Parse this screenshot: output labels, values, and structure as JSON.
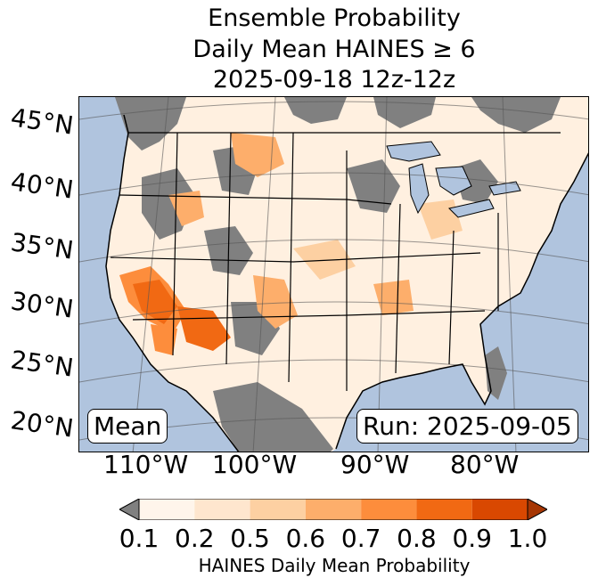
{
  "title": {
    "line1": "Ensemble Probability",
    "line2": "Daily Mean HAINES ≥ 6",
    "line3": "2025-09-18 12z-12z"
  },
  "map": {
    "ocean_color": "#b0c4de",
    "land_missing_color": "#808080",
    "lat_labels": [
      "45°N",
      "40°N",
      "35°N",
      "30°N",
      "25°N",
      "20°N"
    ],
    "lon_labels": [
      "110°W",
      "100°W",
      "90°W",
      "80°W"
    ],
    "stat_label": "Mean",
    "run_label": "Run: 2025-09-05"
  },
  "colorbar": {
    "label": "HAINES Daily Mean Probability",
    "ticks": [
      "0.1",
      "0.2",
      "0.5",
      "0.6",
      "0.7",
      "0.8",
      "0.9",
      "1.0"
    ],
    "colors": [
      "#fff5eb",
      "#fee6ce",
      "#fdd0a2",
      "#fdae6b",
      "#fd8d3c",
      "#f16913",
      "#d94801"
    ],
    "under_color": "#808080",
    "over_color": "#a63603"
  }
}
